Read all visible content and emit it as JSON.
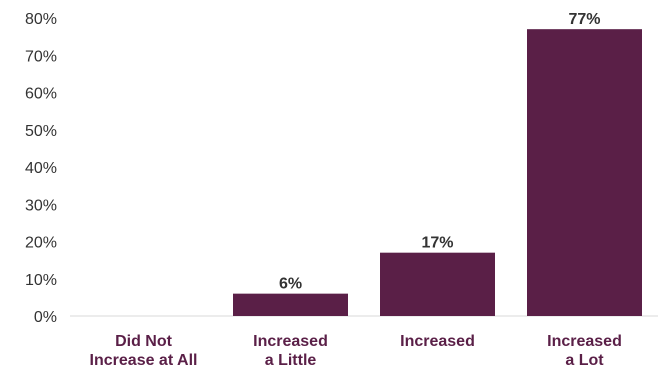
{
  "chart_data": {
    "type": "bar",
    "categories": [
      [
        "Did Not",
        "Increase at All"
      ],
      [
        "Increased",
        "a Little"
      ],
      [
        "Increased"
      ],
      [
        "Increased",
        "a Lot"
      ]
    ],
    "values": [
      0,
      6,
      17,
      77
    ],
    "data_labels": [
      "",
      "6%",
      "17%",
      "77%"
    ],
    "ylim": [
      0,
      80
    ],
    "yticks": [
      0,
      10,
      20,
      30,
      40,
      50,
      60,
      70,
      80
    ],
    "ytick_labels": [
      "0%",
      "10%",
      "20%",
      "30%",
      "40%",
      "50%",
      "60%",
      "70%",
      "80%"
    ],
    "title": "",
    "xlabel": "",
    "ylabel": "",
    "grid": false,
    "bar_color": "#5a1f47",
    "category_label_color": "#5a1f47"
  }
}
